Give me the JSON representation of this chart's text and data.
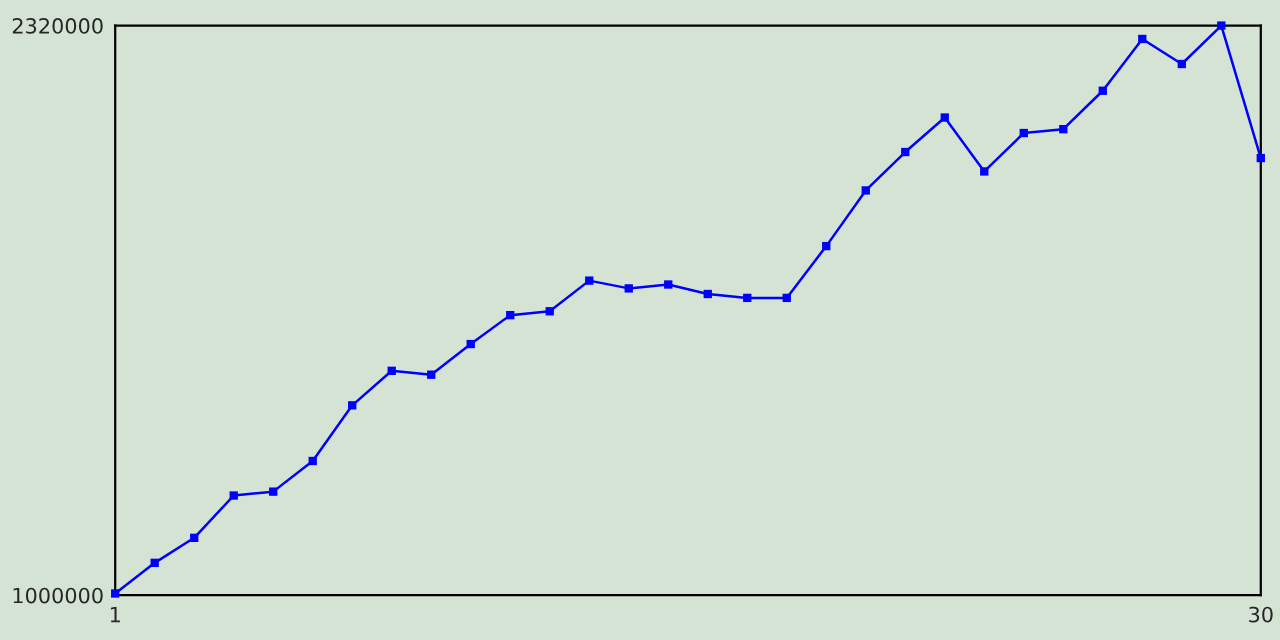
{
  "chart_data": {
    "type": "line",
    "x": [
      1,
      2,
      3,
      4,
      5,
      6,
      7,
      8,
      9,
      10,
      11,
      12,
      13,
      14,
      15,
      16,
      17,
      18,
      19,
      20,
      21,
      22,
      23,
      24,
      25,
      26,
      27,
      28,
      29,
      30
    ],
    "series": [
      {
        "color": "#0000ff",
        "values": [
          1004000,
          1075000,
          1133000,
          1231000,
          1240000,
          1311000,
          1440000,
          1520000,
          1511000,
          1582000,
          1649000,
          1658000,
          1729000,
          1711000,
          1720000,
          1698000,
          1689000,
          1689000,
          1809000,
          1938000,
          2027000,
          2107000,
          1982000,
          2071000,
          2080000,
          2169000,
          2289000,
          2231000,
          2320000,
          2013000
        ]
      }
    ],
    "xlim": [
      1,
      30
    ],
    "xticks": [
      1,
      30
    ],
    "ylim": [
      1000000,
      2320000
    ],
    "yticks": [
      1000000,
      2320000
    ],
    "marker": "square",
    "line_style": "solid",
    "legend": false
  }
}
